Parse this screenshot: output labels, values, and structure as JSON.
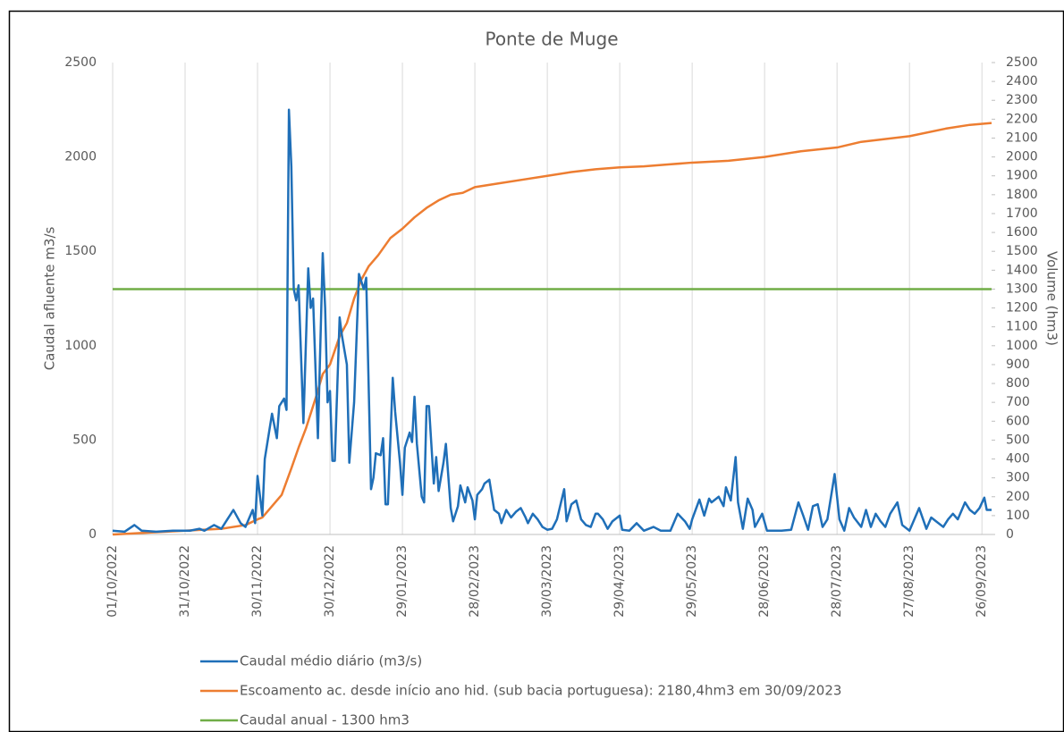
{
  "chart_data": {
    "type": "line",
    "title": "Ponte de Muge",
    "y_label": "Caudal afluente m3/s",
    "y2_label": "Volume (hm3)",
    "xlim": [
      "01/10/2022",
      "30/09/2023"
    ],
    "xticks": [
      "01/10/2022",
      "31/10/2022",
      "30/11/2022",
      "30/12/2022",
      "29/01/2023",
      "28/02/2023",
      "30/03/2023",
      "29/04/2023",
      "29/05/2023",
      "28/06/2023",
      "28/07/2023",
      "27/08/2023",
      "26/09/2023"
    ],
    "ylim": [
      0,
      2500
    ],
    "yticks": [
      0,
      500,
      1000,
      1500,
      2000,
      2500
    ],
    "y2lim": [
      0,
      2500
    ],
    "y2ticks": [
      0,
      100,
      200,
      300,
      400,
      500,
      600,
      700,
      800,
      900,
      1000,
      1100,
      1200,
      1300,
      1400,
      1500,
      1600,
      1700,
      1800,
      1900,
      2000,
      2100,
      2200,
      2300,
      2400,
      2500
    ],
    "grid": true,
    "legend": "bottom",
    "series": [
      {
        "name": "Caudal  médio diário (m3/s)",
        "color": "#1f6fb8",
        "axis": "y",
        "x": [
          "01/10/2022",
          "06/10/2022",
          "10/10/2022",
          "13/10/2022",
          "19/10/2022",
          "26/10/2022",
          "02/11/2022",
          "06/11/2022",
          "08/11/2022",
          "12/11/2022",
          "15/11/2022",
          "20/11/2022",
          "23/11/2022",
          "25/11/2022",
          "28/11/2022",
          "29/11/2022",
          "30/11/2022",
          "02/12/2022",
          "03/12/2022",
          "05/12/2022",
          "06/12/2022",
          "08/12/2022",
          "09/12/2022",
          "11/12/2022",
          "12/12/2022",
          "13/12/2022",
          "14/12/2022",
          "15/12/2022",
          "16/12/2022",
          "17/12/2022",
          "19/12/2022",
          "21/12/2022",
          "22/12/2022",
          "23/12/2022",
          "25/12/2022",
          "27/12/2022",
          "28/12/2022",
          "29/12/2022",
          "30/12/2022",
          "31/12/2022",
          "01/01/2023",
          "03/01/2023",
          "04/01/2023",
          "06/01/2023",
          "07/01/2023",
          "09/01/2023",
          "11/01/2023",
          "13/01/2023",
          "14/01/2023",
          "16/01/2023",
          "17/01/2023",
          "18/01/2023",
          "20/01/2023",
          "21/01/2023",
          "22/01/2023",
          "23/01/2023",
          "25/01/2023",
          "26/01/2023",
          "28/01/2023",
          "29/01/2023",
          "30/01/2023",
          "01/02/2023",
          "02/02/2023",
          "03/02/2023",
          "04/02/2023",
          "06/02/2023",
          "07/02/2023",
          "08/02/2023",
          "09/02/2023",
          "11/02/2023",
          "12/02/2023",
          "13/02/2023",
          "15/02/2023",
          "16/02/2023",
          "18/02/2023",
          "19/02/2023",
          "21/02/2023",
          "22/02/2023",
          "24/02/2023",
          "25/02/2023",
          "27/02/2023",
          "28/02/2023",
          "01/03/2023",
          "03/03/2023",
          "04/03/2023",
          "06/03/2023",
          "08/03/2023",
          "10/03/2023",
          "11/03/2023",
          "13/03/2023",
          "15/03/2023",
          "17/03/2023",
          "19/03/2023",
          "21/03/2023",
          "22/03/2023",
          "24/03/2023",
          "26/03/2023",
          "28/03/2023",
          "30/03/2023",
          "01/04/2023",
          "03/04/2023",
          "06/04/2023",
          "07/04/2023",
          "09/04/2023",
          "11/04/2023",
          "13/04/2023",
          "15/04/2023",
          "17/04/2023",
          "19/04/2023",
          "20/04/2023",
          "22/04/2023",
          "24/04/2023",
          "26/04/2023",
          "29/04/2023",
          "30/04/2023",
          "03/05/2023",
          "06/05/2023",
          "09/05/2023",
          "13/05/2023",
          "16/05/2023",
          "20/05/2023",
          "23/05/2023",
          "26/05/2023",
          "28/05/2023",
          "29/05/2023",
          "01/06/2023",
          "03/06/2023",
          "05/06/2023",
          "06/06/2023",
          "09/06/2023",
          "11/06/2023",
          "12/06/2023",
          "14/06/2023",
          "16/06/2023",
          "17/06/2023",
          "19/06/2023",
          "21/06/2023",
          "23/06/2023",
          "24/06/2023",
          "27/06/2023",
          "29/06/2023",
          "02/07/2023",
          "05/07/2023",
          "09/07/2023",
          "12/07/2023",
          "14/07/2023",
          "16/07/2023",
          "18/07/2023",
          "20/07/2023",
          "22/07/2023",
          "24/07/2023",
          "27/07/2023",
          "29/07/2023",
          "31/07/2023",
          "02/08/2023",
          "04/08/2023",
          "07/08/2023",
          "09/08/2023",
          "11/08/2023",
          "13/08/2023",
          "15/08/2023",
          "17/08/2023",
          "19/08/2023",
          "22/08/2023",
          "24/08/2023",
          "27/08/2023",
          "29/08/2023",
          "31/08/2023",
          "03/09/2023",
          "05/09/2023",
          "07/09/2023",
          "10/09/2023",
          "12/09/2023",
          "14/09/2023",
          "16/09/2023",
          "19/09/2023",
          "21/09/2023",
          "23/09/2023",
          "25/09/2023",
          "27/09/2023",
          "28/09/2023",
          "30/09/2023"
        ],
        "values": [
          20,
          15,
          50,
          20,
          15,
          20,
          20,
          30,
          20,
          50,
          30,
          130,
          60,
          40,
          130,
          60,
          310,
          100,
          400,
          560,
          640,
          510,
          680,
          720,
          660,
          2250,
          1950,
          1300,
          1240,
          1320,
          590,
          1410,
          1200,
          1250,
          510,
          1490,
          1200,
          700,
          760,
          390,
          390,
          1150,
          1050,
          900,
          380,
          700,
          1380,
          1300,
          1360,
          240,
          300,
          430,
          420,
          510,
          160,
          160,
          830,
          650,
          380,
          210,
          460,
          540,
          490,
          730,
          480,
          200,
          170,
          680,
          680,
          270,
          410,
          230,
          380,
          480,
          140,
          70,
          150,
          260,
          170,
          250,
          180,
          80,
          210,
          240,
          270,
          290,
          130,
          110,
          60,
          130,
          90,
          120,
          140,
          90,
          60,
          110,
          80,
          40,
          25,
          30,
          80,
          240,
          70,
          160,
          180,
          80,
          50,
          40,
          110,
          110,
          80,
          30,
          70,
          100,
          25,
          20,
          60,
          20,
          40,
          20,
          20,
          110,
          70,
          30,
          80,
          185,
          100,
          190,
          170,
          200,
          150,
          250,
          180,
          410,
          170,
          30,
          190,
          130,
          40,
          110,
          20,
          20,
          20,
          25,
          170,
          100,
          25,
          150,
          160,
          40,
          80,
          320,
          80,
          20,
          140,
          90,
          40,
          130,
          40,
          110,
          70,
          40,
          110,
          170,
          50,
          20,
          80,
          140,
          30,
          90,
          70,
          40,
          80,
          110,
          80,
          170,
          130,
          110,
          140,
          195,
          130,
          130
        ]
      },
      {
        "name": "Escoamento ac. desde início ano hid. (sub bacia portuguesa): 2180,4hm3 em 30/09/2023",
        "color": "#ed7d31",
        "axis": "y2",
        "x": [
          "01/10/2022",
          "31/10/2022",
          "15/11/2022",
          "25/11/2022",
          "30/11/2022",
          "02/12/2022",
          "06/12/2022",
          "10/12/2022",
          "14/12/2022",
          "17/12/2022",
          "20/12/2022",
          "24/12/2022",
          "27/12/2022",
          "30/12/2022",
          "03/01/2023",
          "06/01/2023",
          "09/01/2023",
          "12/01/2023",
          "15/01/2023",
          "19/01/2023",
          "24/01/2023",
          "29/01/2023",
          "03/02/2023",
          "08/02/2023",
          "13/02/2023",
          "18/02/2023",
          "23/02/2023",
          "28/02/2023",
          "10/03/2023",
          "20/03/2023",
          "30/03/2023",
          "09/04/2023",
          "19/04/2023",
          "29/04/2023",
          "09/05/2023",
          "19/05/2023",
          "29/05/2023",
          "13/06/2023",
          "28/06/2023",
          "13/07/2023",
          "28/07/2023",
          "07/08/2023",
          "27/08/2023",
          "11/09/2023",
          "21/09/2023",
          "30/09/2023"
        ],
        "values": [
          0,
          20,
          30,
          50,
          80,
          90,
          150,
          210,
          350,
          460,
          560,
          720,
          850,
          900,
          1050,
          1120,
          1250,
          1350,
          1420,
          1480,
          1570,
          1620,
          1680,
          1730,
          1770,
          1800,
          1810,
          1840,
          1860,
          1880,
          1900,
          1920,
          1935,
          1945,
          1950,
          1960,
          1970,
          1980,
          2000,
          2030,
          2050,
          2080,
          2110,
          2150,
          2170,
          2180
        ]
      },
      {
        "name": "Caudal anual - 1300 hm3",
        "color": "#70ad47",
        "axis": "y2",
        "x": [
          "01/10/2022",
          "30/09/2023"
        ],
        "values": [
          1300,
          1300
        ]
      }
    ]
  }
}
